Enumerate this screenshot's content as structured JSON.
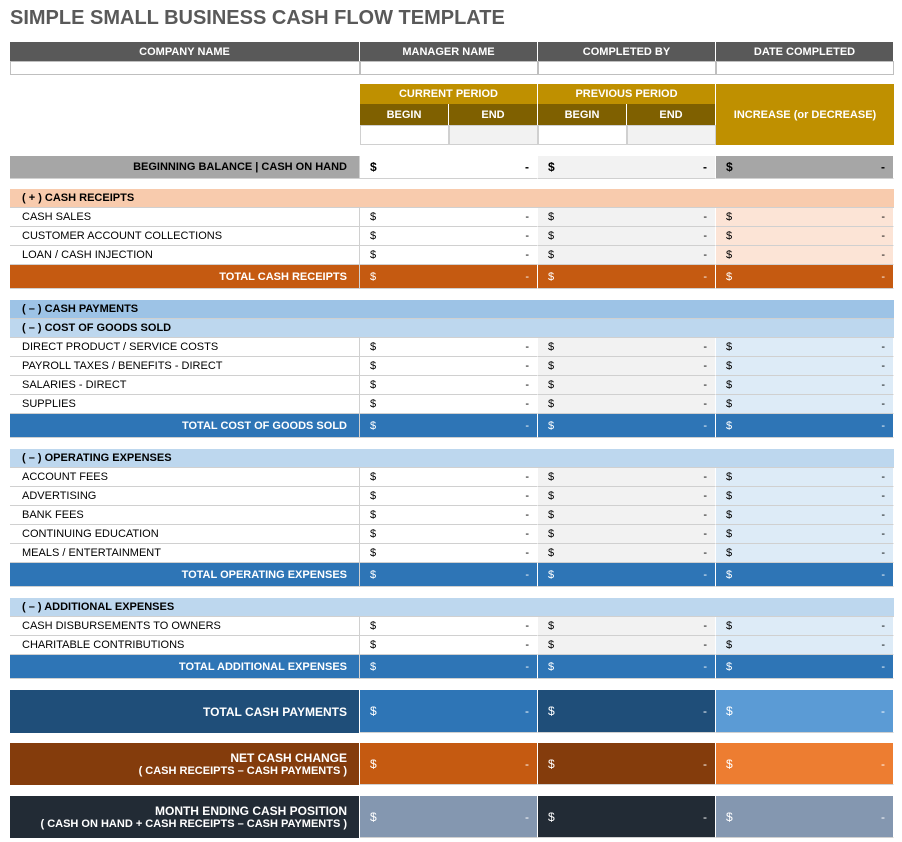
{
  "title": "SIMPLE SMALL BUSINESS CASH FLOW TEMPLATE",
  "header": {
    "columns": [
      "COMPANY NAME",
      "MANAGER NAME",
      "COMPLETED BY",
      "DATE COMPLETED"
    ]
  },
  "period_header": {
    "current": "CURRENT PERIOD",
    "previous": "PREVIOUS PERIOD",
    "begin": "BEGIN",
    "end": "END",
    "change": "INCREASE (or DECREASE)"
  },
  "currency": "$",
  "blank": "-",
  "beginning_balance": "BEGINNING BALANCE  |  CASH ON HAND",
  "cash_receipts": {
    "header": "( + )   CASH RECEIPTS",
    "items": [
      "CASH SALES",
      "CUSTOMER ACCOUNT COLLECTIONS",
      "LOAN / CASH INJECTION"
    ],
    "total": "TOTAL CASH RECEIPTS"
  },
  "cash_payments": {
    "header": "( – )   CASH PAYMENTS",
    "groups": [
      {
        "header": "( – )   COST OF GOODS SOLD",
        "items": [
          "DIRECT PRODUCT / SERVICE COSTS",
          "PAYROLL TAXES / BENEFITS - DIRECT",
          "SALARIES - DIRECT",
          "SUPPLIES"
        ],
        "total": "TOTAL COST OF GOODS SOLD"
      },
      {
        "header": "( – )   OPERATING EXPENSES",
        "items": [
          "ACCOUNT FEES",
          "ADVERTISING",
          "BANK FEES",
          "CONTINUING EDUCATION",
          "MEALS / ENTERTAINMENT"
        ],
        "total": "TOTAL OPERATING EXPENSES"
      },
      {
        "header": "( – )   ADDITIONAL EXPENSES",
        "items": [
          "CASH DISBURSEMENTS TO OWNERS",
          "CHARITABLE CONTRIBUTIONS"
        ],
        "total": "TOTAL ADDITIONAL EXPENSES"
      }
    ]
  },
  "total_cash_payments": "TOTAL CASH PAYMENTS",
  "net_cash_change": {
    "label": "NET CASH CHANGE",
    "note": "( CASH RECEIPTS – CASH PAYMENTS )"
  },
  "month_ending": {
    "label": "MONTH ENDING CASH POSITION",
    "note": "( CASH ON HAND + CASH RECEIPTS – CASH PAYMENTS )"
  }
}
